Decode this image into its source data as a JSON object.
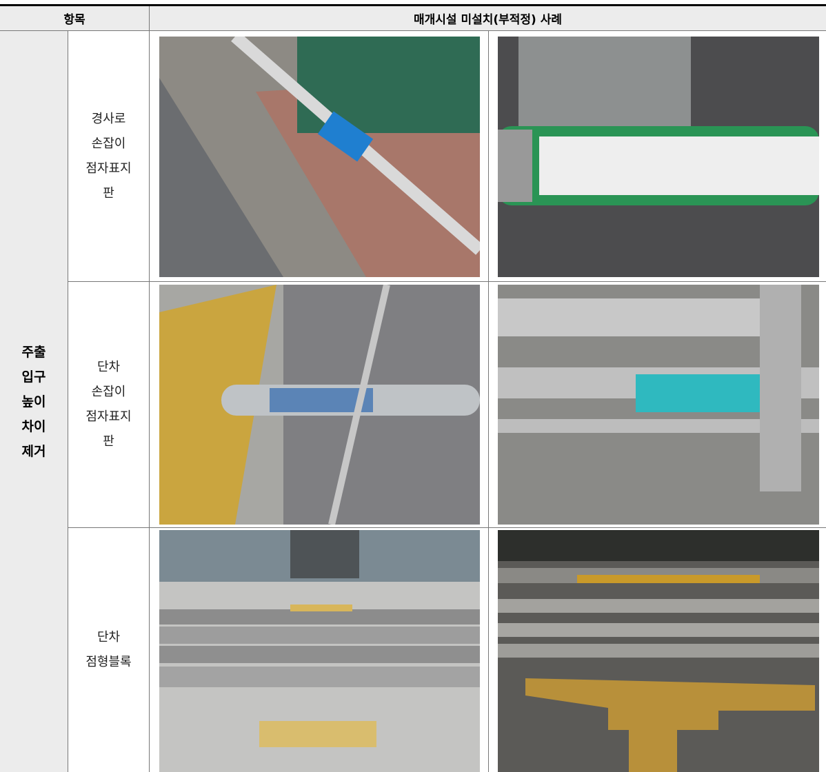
{
  "header": {
    "item": "항목",
    "cases": "매개시설 미설치(부적정) 사례"
  },
  "category": [
    "주출",
    "입구",
    "높이",
    "차이",
    "제거"
  ],
  "rows": [
    {
      "label": [
        "경사로",
        "손잡이",
        "점자표지",
        "판"
      ]
    },
    {
      "label": [
        "단차",
        "손잡이",
        "점자표지",
        "판"
      ]
    },
    {
      "label": [
        "단차",
        "점형블록"
      ]
    }
  ]
}
